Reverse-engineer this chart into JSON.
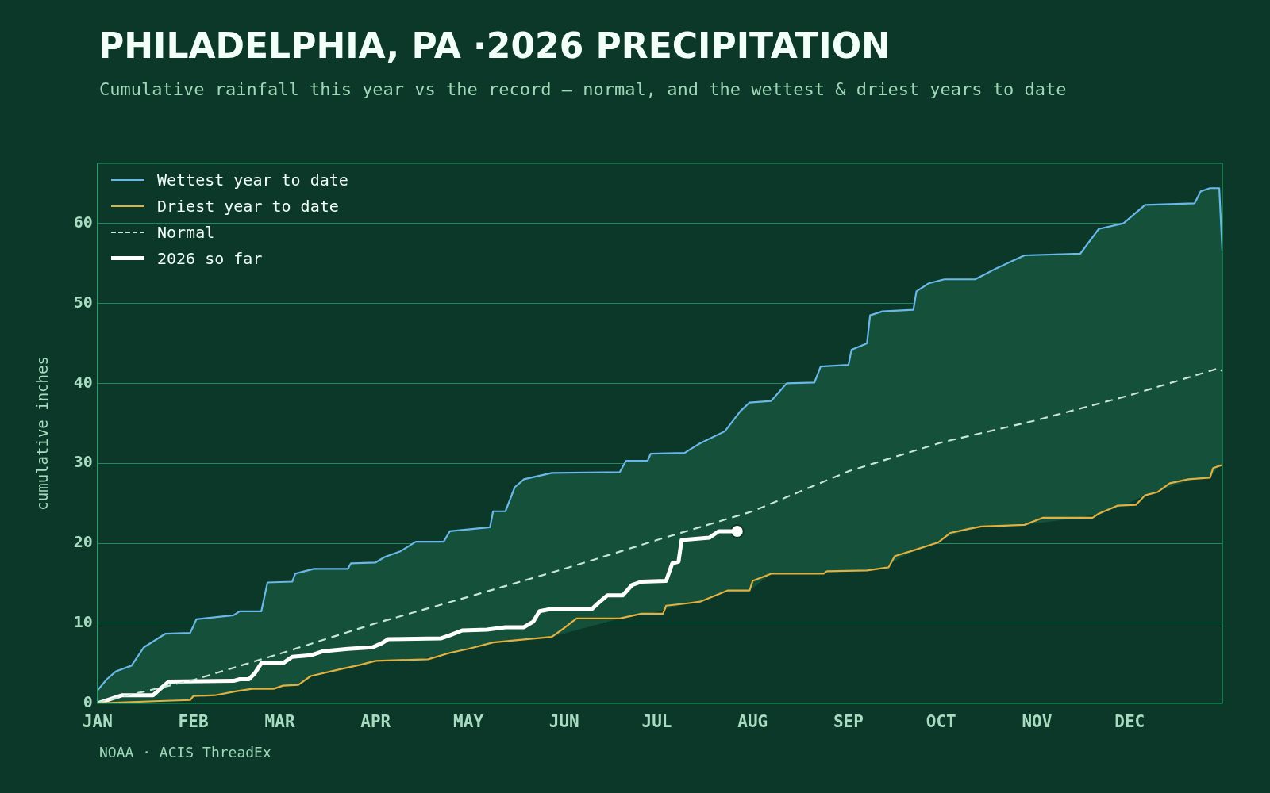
{
  "chart_data": {
    "type": "line",
    "title": "PHILADELPHIA, PA ·2026 PRECIPITATION",
    "subtitle": "Cumulative rainfall this year vs the record — normal, and the wettest & driest years to date",
    "ylabel": "cumulative inches",
    "annotations": [
      "NOAA · ACIS ThreadEx"
    ],
    "xlim": [
      "--01-01",
      "--12-31"
    ],
    "xticks": [
      {
        "value": "--01-01",
        "label": "JAN"
      },
      {
        "value": "--02-01",
        "label": "FEB"
      },
      {
        "value": "--03-01",
        "label": "MAR"
      },
      {
        "value": "--04-01",
        "label": "APR"
      },
      {
        "value": "--05-01",
        "label": "MAY"
      },
      {
        "value": "--06-01",
        "label": "JUN"
      },
      {
        "value": "--07-01",
        "label": "JUL"
      },
      {
        "value": "--08-01",
        "label": "AUG"
      },
      {
        "value": "--09-01",
        "label": "SEP"
      },
      {
        "value": "--10-01",
        "label": "OCT"
      },
      {
        "value": "--11-01",
        "label": "NOV"
      },
      {
        "value": "--12-01",
        "label": "DEC"
      }
    ],
    "ylim": [
      0,
      67.5
    ],
    "yticks": [
      0,
      10,
      20,
      30,
      40,
      50,
      60
    ],
    "grid": "y",
    "legend": "top left",
    "series": [
      {
        "name": "Wettest year to date",
        "color": "#6ab8e8",
        "x": [
          "--01-01",
          "--01-04",
          "--01-07",
          "--01-12",
          "--01-16",
          "--01-23",
          "--01-31",
          "--02-02",
          "--02-14",
          "--02-16",
          "--02-23",
          "--02-25",
          "--03-05",
          "--03-06",
          "--03-12",
          "--03-23",
          "--03-24",
          "--04-01",
          "--04-04",
          "--04-09",
          "--04-14",
          "--04-23",
          "--04-25",
          "--05-08",
          "--05-09",
          "--05-13",
          "--05-16",
          "--05-19",
          "--05-28",
          "--06-19",
          "--06-21",
          "--06-28",
          "--06-29",
          "--07-10",
          "--07-12",
          "--07-15",
          "--07-23",
          "--07-28",
          "--07-31",
          "--08-07",
          "--08-12",
          "--08-21",
          "--08-23",
          "--09-01",
          "--09-02",
          "--09-07",
          "--09-08",
          "--09-12",
          "--09-22",
          "--09-23",
          "--09-27",
          "--10-02",
          "--10-12",
          "--10-15",
          "--10-19",
          "--10-28",
          "--11-15",
          "--11-21",
          "--11-29",
          "--12-06",
          "--12-22",
          "--12-24",
          "--12-27",
          "--12-30",
          "--12-31"
        ],
        "values": [
          1.6,
          3,
          4,
          4.7,
          7,
          8.7,
          8.8,
          10.5,
          11,
          11.5,
          11.5,
          15.1,
          15.2,
          16.2,
          16.8,
          16.8,
          17.5,
          17.6,
          18.3,
          19,
          20.2,
          20.2,
          21.5,
          22,
          24,
          24,
          27,
          28,
          28.8,
          28.9,
          30.3,
          30.3,
          31.2,
          31.3,
          31.8,
          32.5,
          34,
          36.5,
          37.6,
          37.8,
          40,
          40.1,
          42.1,
          42.3,
          44.2,
          45,
          48.5,
          49,
          49.2,
          51.5,
          52.5,
          53,
          53,
          53.6,
          54.4,
          56,
          56.2,
          59.3,
          60,
          62.3,
          62.5,
          64,
          64.4,
          64.4,
          56.5
        ],
        "lower": [
          0,
          0.04,
          0.08,
          0.15,
          0.2,
          0.3,
          0.4,
          0.91,
          1.43,
          1.56,
          1.8,
          1.8,
          2.26,
          2.28,
          3.49,
          4.46,
          4.54,
          5.3,
          5.34,
          5.4,
          5.45,
          6.07,
          6.3,
          7.5,
          7.6,
          7.75,
          7.86,
          7.94,
          8.3,
          10.6,
          10.77,
          11.2,
          11.2,
          12.46,
          12.55,
          12.7,
          13.94,
          14.1,
          14.1,
          16.2,
          16.2,
          16.2,
          16.2,
          16.55,
          16.56,
          16.6,
          16.66,
          16.89,
          19.1,
          19.23,
          19.73,
          20.7,
          21.95,
          22.11,
          22.16,
          22.3,
          23.2,
          23.7,
          24.73,
          26,
          28.06,
          28.11,
          28.2,
          29.7,
          29.8
        ],
        "upper": [
          1.6,
          3,
          4,
          4.7,
          7,
          8.7,
          8.8,
          10.5,
          11,
          11.5,
          11.5,
          15.1,
          15.2,
          16.2,
          16.8,
          16.8,
          17.5,
          17.6,
          18.3,
          19,
          20.2,
          20.2,
          21.5,
          22,
          24,
          24,
          27,
          28,
          28.8,
          28.9,
          30.3,
          30.3,
          31.2,
          31.3,
          31.8,
          32.5,
          34,
          36.5,
          37.6,
          37.8,
          40,
          40.1,
          42.1,
          42.3,
          44.2,
          45,
          48.5,
          49,
          49.2,
          51.5,
          52.5,
          53,
          53,
          53.6,
          54.4,
          56,
          56.2,
          59.3,
          60,
          62.3,
          62.5,
          64,
          64.4,
          64.4,
          56.5
        ]
      },
      {
        "name": "Driest year to date",
        "color": "#e0b040",
        "x": [
          "--01-01",
          "--01-23",
          "--01-31",
          "--02-01",
          "--02-08",
          "--02-15",
          "--02-20",
          "--02-27",
          "--03-02",
          "--03-07",
          "--03-11",
          "--03-20",
          "--03-27",
          "--04-01",
          "--04-18",
          "--04-25",
          "--05-01",
          "--05-09",
          "--05-17",
          "--05-28",
          "--06-01",
          "--06-05",
          "--06-19",
          "--06-26",
          "--07-03",
          "--07-04",
          "--07-11",
          "--07-15",
          "--07-24",
          "--07-31",
          "--08-01",
          "--08-07",
          "--08-24",
          "--08-25",
          "--09-07",
          "--09-14",
          "--09-16",
          "--09-22",
          "--09-30",
          "--10-04",
          "--10-10",
          "--10-14",
          "--10-28",
          "--11-03",
          "--11-19",
          "--11-21",
          "--11-27",
          "--12-03",
          "--12-06",
          "--12-10",
          "--12-14",
          "--12-20",
          "--12-27",
          "--12-28",
          "--12-31"
        ],
        "values": [
          0,
          0.3,
          0.4,
          0.9,
          1,
          1.5,
          1.8,
          1.8,
          2.2,
          2.3,
          3.4,
          4.2,
          4.8,
          5.3,
          5.5,
          6.3,
          6.8,
          7.6,
          7.9,
          8.3,
          9.4,
          10.6,
          10.6,
          11.2,
          11.2,
          12.2,
          12.5,
          12.7,
          14.1,
          14.1,
          15.3,
          16.2,
          16.2,
          16.5,
          16.6,
          17,
          18.4,
          19.1,
          20.1,
          21.3,
          21.8,
          22.1,
          22.3,
          23.2,
          23.2,
          23.7,
          24.7,
          24.8,
          26,
          26.4,
          27.5,
          28,
          28.2,
          29.4,
          29.8
        ]
      },
      {
        "name": "Normal",
        "color": "#c8e6d4",
        "line_style": "dashed",
        "x": [
          "--01-01",
          "--02-01",
          "--03-01",
          "--04-01",
          "--05-01",
          "--06-01",
          "--07-01",
          "--08-01",
          "--09-01",
          "--10-01",
          "--11-01",
          "--12-01",
          "--12-30",
          "--12-31"
        ],
        "values": [
          0.1,
          2.9,
          6.2,
          10,
          13.3,
          16.8,
          20.4,
          24,
          29,
          32.6,
          35.4,
          38.5,
          41.9,
          41.5
        ]
      },
      {
        "name": "2026 so far",
        "color": "#ffffff",
        "x": [
          "--01-01",
          "--01-09",
          "--01-19",
          "--01-21",
          "--01-24",
          "--02-14",
          "--02-16",
          "--02-19",
          "--02-21",
          "--02-23",
          "--03-02",
          "--03-05",
          "--03-11",
          "--03-15",
          "--03-23",
          "--03-31",
          "--04-03",
          "--04-05",
          "--04-22",
          "--04-25",
          "--04-29",
          "--05-07",
          "--05-13",
          "--05-19",
          "--05-22",
          "--05-24",
          "--05-28",
          "--06-10",
          "--06-12",
          "--06-15",
          "--06-20",
          "--06-23",
          "--06-26",
          "--07-04",
          "--07-06",
          "--07-08",
          "--07-09",
          "--07-18",
          "--07-21",
          "--07-27"
        ],
        "values": [
          0,
          1,
          1,
          1.7,
          2.7,
          2.8,
          3,
          3,
          3.8,
          5,
          5,
          5.8,
          6,
          6.5,
          6.8,
          7,
          7.5,
          8,
          8.1,
          8.5,
          9.1,
          9.2,
          9.5,
          9.5,
          10.2,
          11.5,
          11.8,
          11.8,
          12.5,
          13.5,
          13.5,
          14.8,
          15.2,
          15.3,
          17.5,
          17.7,
          20.4,
          20.7,
          21.5,
          21.5
        ]
      },
      {
        "type": "scatter",
        "color": "#ffffff",
        "x": [
          "--07-27"
        ],
        "values": [
          21.5
        ],
        "marker": "circle"
      }
    ]
  }
}
